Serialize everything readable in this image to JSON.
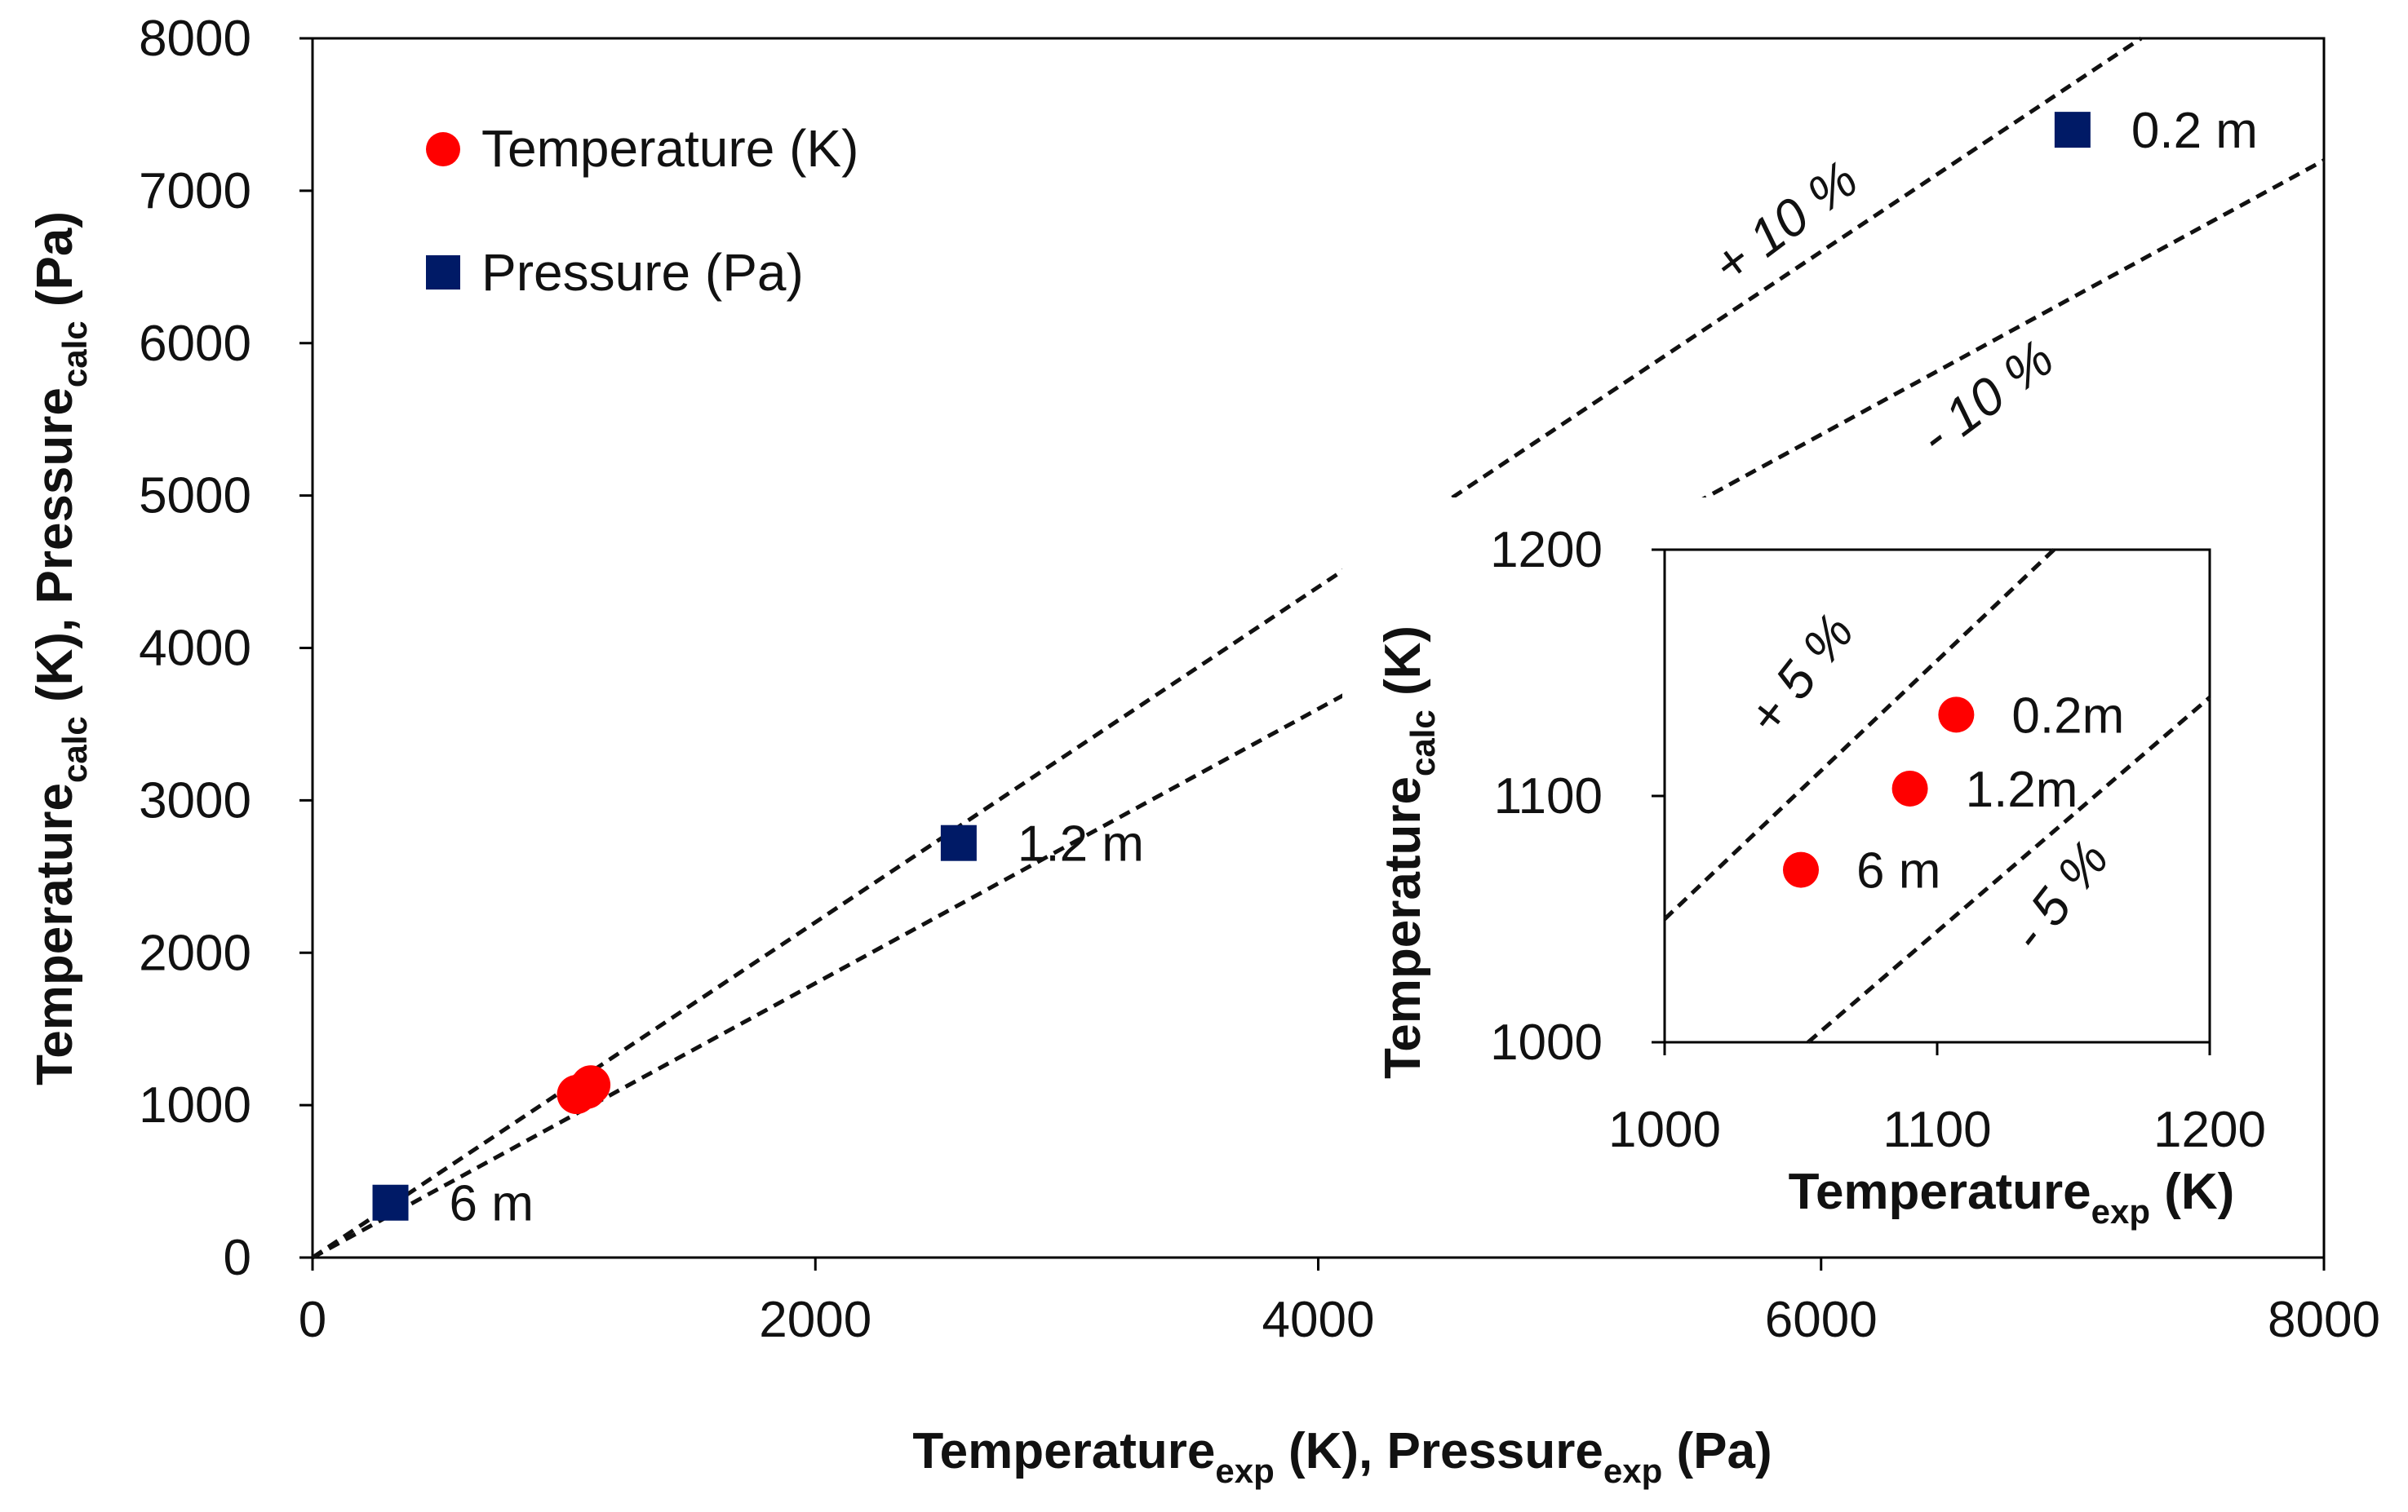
{
  "colors": {
    "temperature": "#ff0000",
    "pressure": "#001a66",
    "axis": "#000000",
    "dashed": "#111111"
  },
  "chart_data": [
    {
      "type": "scatter",
      "id": "main",
      "title": "",
      "xlabel": {
        "main": "Temperature",
        "sub": "exp",
        "mid": " (K), Pressure",
        "sub2": "exp",
        "end": " (Pa)"
      },
      "ylabel": {
        "main": "Temperature",
        "sub": "calc",
        "mid": " (K), Pressure",
        "sub2": "calc",
        "end": " (Pa)"
      },
      "xlim": [
        0,
        8000
      ],
      "ylim": [
        0,
        8000
      ],
      "xticks": [
        0,
        2000,
        4000,
        6000,
        8000
      ],
      "yticks": [
        0,
        1000,
        2000,
        3000,
        4000,
        5000,
        6000,
        7000,
        8000
      ],
      "legend": {
        "placement": "top-left",
        "items": [
          {
            "name": "Temperature (K)",
            "marker": "circle"
          },
          {
            "name": "Pressure (Pa)",
            "marker": "square"
          }
        ]
      },
      "series": [
        {
          "name": "Temperature (K)",
          "marker": "circle",
          "points": [
            {
              "x": 1050,
              "y": 1070
            },
            {
              "x": 1090,
              "y": 1103
            },
            {
              "x": 1107,
              "y": 1133
            }
          ]
        },
        {
          "name": "Pressure (Pa)",
          "marker": "square",
          "points": [
            {
              "x": 310,
              "y": 360,
              "label": "6 m"
            },
            {
              "x": 2570,
              "y": 2720,
              "label": "1.2 m"
            },
            {
              "x": 7000,
              "y": 7400,
              "label": "0.2 m"
            }
          ]
        }
      ],
      "bands": [
        {
          "label": "+ 10 %",
          "slope": 1.1
        },
        {
          "label": "- 10 %",
          "slope": 0.9
        }
      ]
    },
    {
      "type": "scatter",
      "id": "inset",
      "xlabel": {
        "main": "Temperature",
        "sub": "exp",
        "end": " (K)"
      },
      "ylabel": {
        "main": "Temperature",
        "sub": "calc",
        "end": " (K)"
      },
      "xlim": [
        1000,
        1200
      ],
      "ylim": [
        1000,
        1200
      ],
      "xticks": [
        1000,
        1100,
        1200
      ],
      "yticks": [
        1000,
        1100,
        1200
      ],
      "series": [
        {
          "name": "Temperature (K)",
          "marker": "circle",
          "points": [
            {
              "x": 1107,
              "y": 1133,
              "label": "0.2m"
            },
            {
              "x": 1090,
              "y": 1103,
              "label": "1.2m"
            },
            {
              "x": 1050,
              "y": 1070,
              "label": "6 m"
            }
          ]
        }
      ],
      "bands": [
        {
          "label": "+ 5 %",
          "slope": 1.05
        },
        {
          "label": "- 5 %",
          "slope": 0.95
        }
      ]
    }
  ]
}
